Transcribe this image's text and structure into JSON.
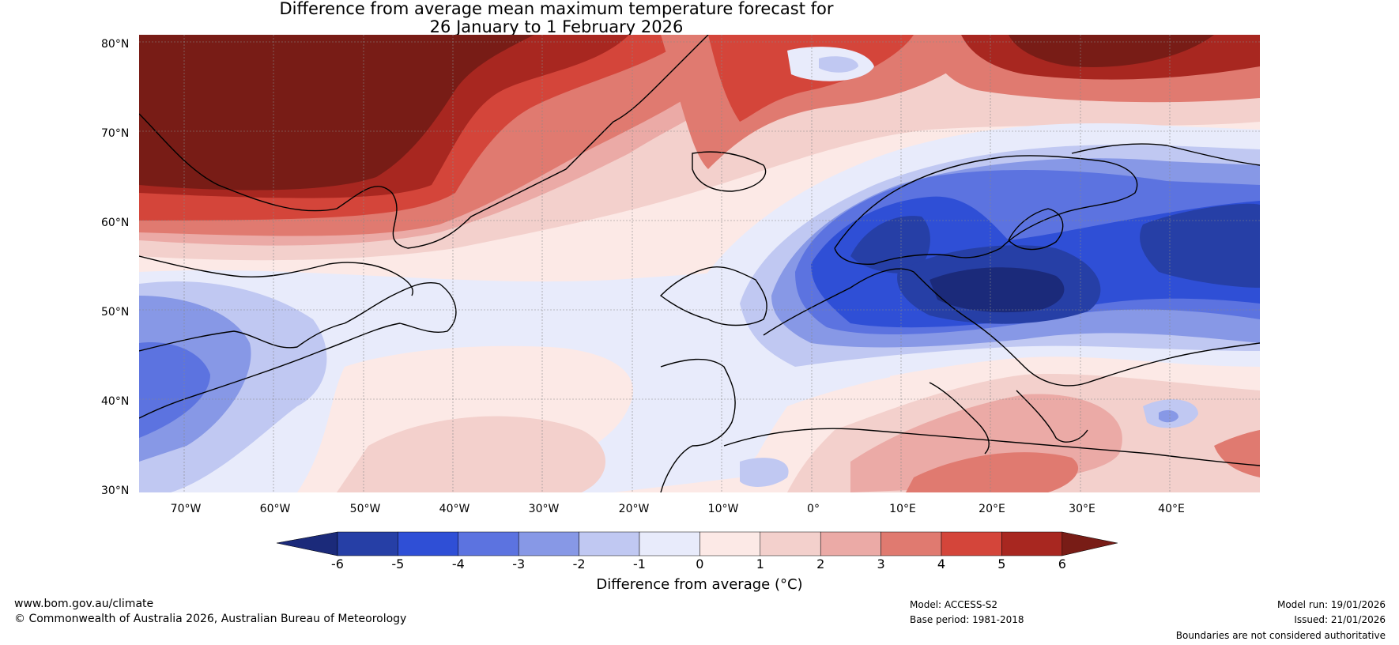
{
  "title": {
    "line1": "Difference from average mean maximum temperature forecast for",
    "line2": "26 January to 1 February 2026"
  },
  "map": {
    "lat_labels": [
      "80°N",
      "70°N",
      "60°N",
      "50°N",
      "40°N",
      "30°N"
    ],
    "lon_labels": [
      "70°W",
      "60°W",
      "50°W",
      "40°W",
      "30°W",
      "20°W",
      "10°W",
      "0°",
      "10°E",
      "20°E",
      "30°E",
      "40°E"
    ],
    "extent": {
      "lon_min": -75,
      "lon_max": 50,
      "lat_min": 30,
      "lat_max": 81
    }
  },
  "colorbar": {
    "label": "Difference from average (°C)",
    "ticks": [
      "-6",
      "-5",
      "-4",
      "-3",
      "-2",
      "-1",
      "0",
      "1",
      "2",
      "3",
      "4",
      "5",
      "6"
    ],
    "tick_values": [
      -6,
      -5,
      -4,
      -3,
      -2,
      -1,
      0,
      1,
      2,
      3,
      4,
      5,
      6
    ],
    "colors": {
      "below_min": "#1b2a7a",
      "m6_m5": "#263fa6",
      "m5_m4": "#2f4fd6",
      "m4_m3": "#5c73e0",
      "m3_m2": "#8798e6",
      "m2_m1": "#c0c8f2",
      "m1_0": "#e8ebfb",
      "p0_p1": "#fce9e6",
      "p1_p2": "#f3d0cc",
      "p2_p3": "#ebaaa6",
      "p3_p4": "#e07a70",
      "p4_p5": "#d4453a",
      "p5_p6": "#a82720",
      "above_max": "#781c16"
    }
  },
  "footer": {
    "website": "www.bom.gov.au/climate",
    "copyright": "© Commonwealth of Australia 2026, Australian Bureau of Meteorology",
    "model": "Model: ACCESS-S2",
    "base_period": "Base period: 1981-2018",
    "model_run": "Model run: 19/01/2026",
    "issued": "Issued: 21/01/2026",
    "disclaimer": "Boundaries are not considered authoritative"
  }
}
